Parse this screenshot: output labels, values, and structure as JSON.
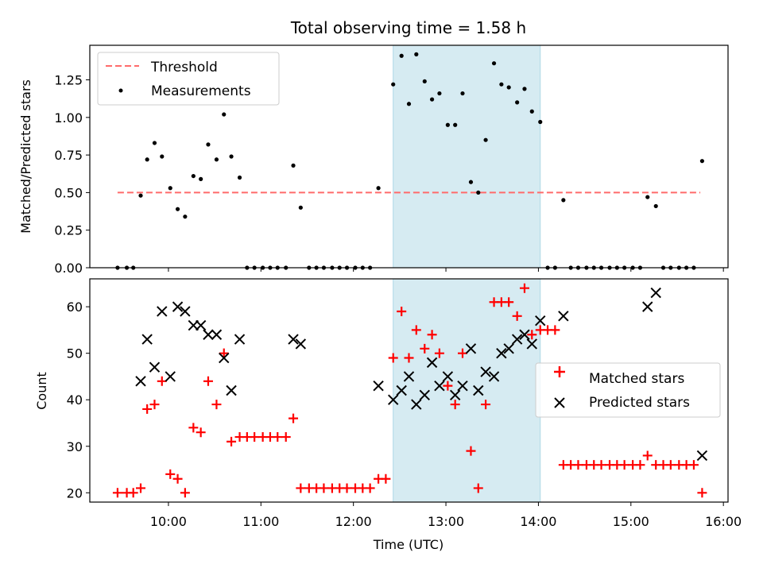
{
  "title": "Total observing time = 1.58 h",
  "chart_data": [
    {
      "type": "scatter",
      "ylabel": "Matched/Predicted stars",
      "xlabel": "",
      "ylim": [
        0,
        1.48
      ],
      "yticks": [
        0,
        0.25,
        0.5,
        0.75,
        1.0,
        1.25
      ],
      "ytick_labels": [
        "0.00",
        "0.25",
        "0.50",
        "0.75",
        "1.00",
        "1.25"
      ],
      "legend": {
        "placement": "top-left",
        "entries": [
          "Threshold",
          "Measurements"
        ]
      },
      "threshold": {
        "name": "Threshold",
        "value": 0.5,
        "x_start": 9.45,
        "x_end": 15.75,
        "color": "#ff6b6b",
        "style": "dashed"
      },
      "series": [
        {
          "name": "Measurements",
          "color": "#000000",
          "x": [
            9.45,
            9.55,
            9.62,
            9.7,
            9.77,
            9.85,
            9.93,
            10.02,
            10.1,
            10.18,
            10.27,
            10.35,
            10.43,
            10.52,
            10.6,
            10.68,
            10.77,
            10.85,
            10.93,
            11.02,
            11.1,
            11.18,
            11.27,
            11.35,
            11.43,
            11.52,
            11.6,
            11.68,
            11.77,
            11.85,
            11.93,
            12.02,
            12.1,
            12.18,
            12.27,
            12.43,
            12.52,
            12.6,
            12.68,
            12.77,
            12.85,
            12.93,
            13.02,
            13.1,
            13.18,
            13.27,
            13.35,
            13.43,
            13.52,
            13.6,
            13.68,
            13.77,
            13.85,
            13.93,
            14.02,
            14.1,
            14.18,
            14.27,
            14.35,
            14.43,
            14.52,
            14.6,
            14.68,
            14.77,
            14.85,
            14.93,
            15.02,
            15.1,
            15.18,
            15.27,
            15.35,
            15.43,
            15.52,
            15.6,
            15.68,
            15.77
          ],
          "y": [
            0,
            0,
            0,
            0.48,
            0.72,
            0.83,
            0.74,
            0.53,
            0.39,
            0.34,
            0.61,
            0.59,
            0.82,
            0.72,
            1.02,
            0.74,
            0.6,
            0,
            0,
            0,
            0,
            0,
            0,
            0.68,
            0.4,
            0,
            0,
            0,
            0,
            0,
            0,
            0,
            0,
            0,
            0.53,
            1.22,
            1.41,
            1.09,
            1.42,
            1.24,
            1.12,
            1.16,
            0.95,
            0.95,
            1.16,
            0.57,
            0.5,
            0.85,
            1.36,
            1.22,
            1.2,
            1.1,
            1.19,
            1.04,
            0.97,
            0,
            0,
            0.45,
            0,
            0,
            0,
            0,
            0,
            0,
            0,
            0,
            0,
            0,
            0.47,
            0.41,
            0,
            0,
            0,
            0,
            0,
            0.71
          ]
        }
      ],
      "shaded_region": {
        "x": [
          12.43,
          14.02
        ],
        "color": "#add8e6"
      }
    },
    {
      "type": "scatter",
      "xlabel": "Time (UTC)",
      "ylabel": "Count",
      "xlim": [
        9.15,
        16.05
      ],
      "ylim": [
        18,
        66
      ],
      "xticks": [
        10,
        11,
        12,
        13,
        14,
        15,
        16
      ],
      "xtick_labels": [
        "10:00",
        "11:00",
        "12:00",
        "13:00",
        "14:00",
        "15:00",
        "16:00"
      ],
      "yticks": [
        20,
        30,
        40,
        50,
        60
      ],
      "ytick_labels": [
        "20",
        "30",
        "40",
        "50",
        "60"
      ],
      "legend": {
        "placement": "center-right",
        "entries": [
          "Matched stars",
          "Predicted stars"
        ]
      },
      "series": [
        {
          "name": "Matched stars",
          "color": "#ff0000",
          "marker": "plus",
          "x": [
            9.45,
            9.55,
            9.62,
            9.7,
            9.77,
            9.85,
            9.93,
            10.02,
            10.1,
            10.18,
            10.27,
            10.35,
            10.43,
            10.52,
            10.6,
            10.68,
            10.77,
            10.85,
            10.93,
            11.02,
            11.1,
            11.18,
            11.27,
            11.35,
            11.43,
            11.52,
            11.6,
            11.68,
            11.77,
            11.85,
            11.93,
            12.02,
            12.1,
            12.18,
            12.27,
            12.35,
            12.43,
            12.52,
            12.6,
            12.68,
            12.77,
            12.85,
            12.93,
            13.02,
            13.1,
            13.18,
            13.27,
            13.35,
            13.43,
            13.52,
            13.6,
            13.68,
            13.77,
            13.85,
            13.93,
            14.02,
            14.1,
            14.18,
            14.27,
            14.35,
            14.43,
            14.52,
            14.6,
            14.68,
            14.77,
            14.85,
            14.93,
            15.02,
            15.1,
            15.18,
            15.27,
            15.35,
            15.43,
            15.52,
            15.6,
            15.68,
            15.77
          ],
          "y": [
            20,
            20,
            20,
            21,
            38,
            39,
            44,
            24,
            23,
            20,
            34,
            33,
            44,
            39,
            50,
            31,
            32,
            32,
            32,
            32,
            32,
            32,
            32,
            36,
            21,
            21,
            21,
            21,
            21,
            21,
            21,
            21,
            21,
            21,
            23,
            23,
            49,
            59,
            49,
            55,
            51,
            54,
            50,
            43,
            39,
            50,
            29,
            21,
            39,
            61,
            61,
            61,
            58,
            64,
            54,
            55,
            55,
            55,
            26,
            26,
            26,
            26,
            26,
            26,
            26,
            26,
            26,
            26,
            26,
            28,
            26,
            26,
            26,
            26,
            26,
            26,
            20
          ]
        },
        {
          "name": "Predicted stars",
          "color": "#000000",
          "marker": "x",
          "x": [
            9.7,
            9.77,
            9.85,
            9.93,
            10.02,
            10.1,
            10.18,
            10.27,
            10.35,
            10.43,
            10.52,
            10.6,
            10.68,
            10.77,
            11.35,
            11.43,
            12.27,
            12.43,
            12.52,
            12.6,
            12.68,
            12.77,
            12.85,
            12.93,
            13.02,
            13.1,
            13.18,
            13.27,
            13.35,
            13.43,
            13.52,
            13.6,
            13.68,
            13.77,
            13.85,
            13.93,
            14.02,
            14.27,
            15.18,
            15.27,
            15.77
          ],
          "y": [
            44,
            53,
            47,
            59,
            45,
            60,
            59,
            56,
            56,
            54,
            54,
            49,
            42,
            53,
            53,
            52,
            43,
            40,
            42,
            45,
            39,
            41,
            48,
            43,
            45,
            41,
            43,
            51,
            42,
            46,
            45,
            50,
            51,
            53,
            54,
            52,
            57,
            58,
            60,
            63,
            28
          ]
        }
      ],
      "shaded_region": {
        "x": [
          12.43,
          14.02
        ],
        "color": "#add8e6"
      }
    }
  ]
}
